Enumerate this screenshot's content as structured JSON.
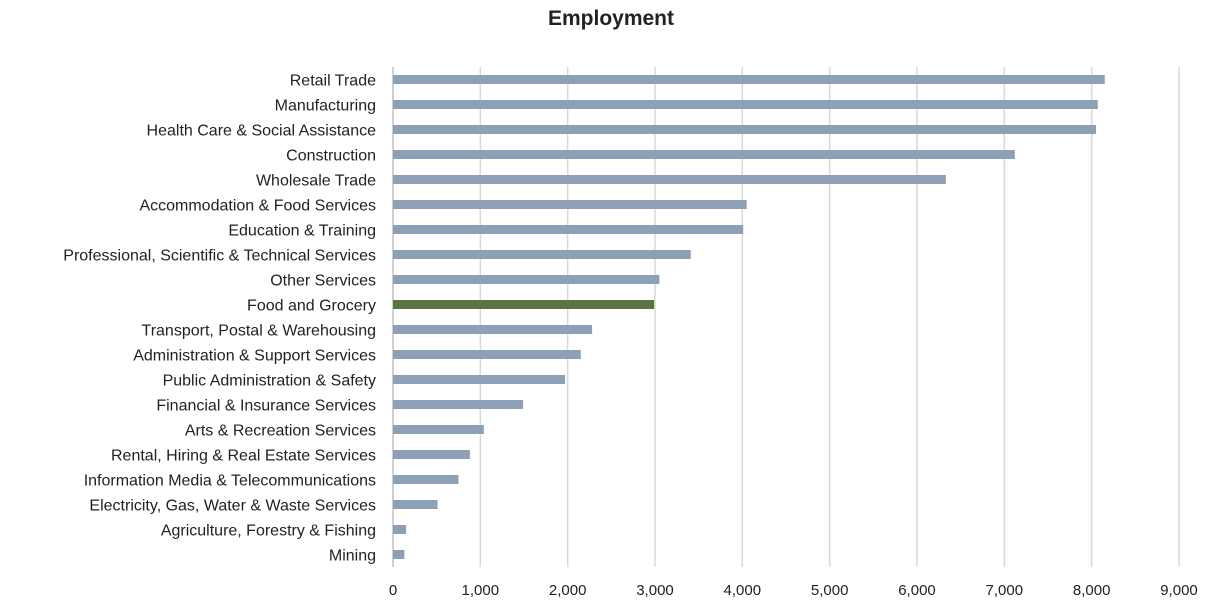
{
  "chart_data": {
    "type": "bar",
    "orientation": "horizontal",
    "title": "Employment",
    "xlabel": "",
    "ylabel": "",
    "xlim": [
      0,
      9000
    ],
    "ticks": [
      "0",
      "1,000",
      "2,000",
      "3,000",
      "4,000",
      "5,000",
      "6,000",
      "7,000",
      "8,000",
      "9,000"
    ],
    "tick_values": [
      0,
      1000,
      2000,
      3000,
      4000,
      5000,
      6000,
      7000,
      8000,
      9000
    ],
    "grid": "vertical",
    "legend": "none",
    "categories": [
      "Retail Trade",
      "Manufacturing",
      "Health Care & Social Assistance",
      "Construction",
      "Wholesale Trade",
      "Accommodation & Food Services",
      "Education & Training",
      "Professional, Scientific & Technical Services",
      "Other Services",
      "Food and Grocery",
      "Transport, Postal & Warehousing",
      "Administration & Support Services",
      "Public Administration & Safety",
      "Financial & Insurance Services",
      "Arts & Recreation Services",
      "Rental, Hiring & Real Estate Services",
      "Information Media & Telecommunications",
      "Electricity, Gas, Water & Waste Services",
      "Agriculture, Forestry & Fishing",
      "Mining"
    ],
    "values": [
      8150,
      8070,
      8050,
      7120,
      6330,
      4050,
      4010,
      3410,
      3050,
      2990,
      2280,
      2150,
      1970,
      1490,
      1040,
      880,
      750,
      510,
      150,
      130
    ],
    "highlight_category": "Food and Grocery",
    "colors": {
      "bar": "#8da0b6",
      "highlight": "#5a7540",
      "grid": "#d9d9d9",
      "text": "#222222"
    }
  }
}
